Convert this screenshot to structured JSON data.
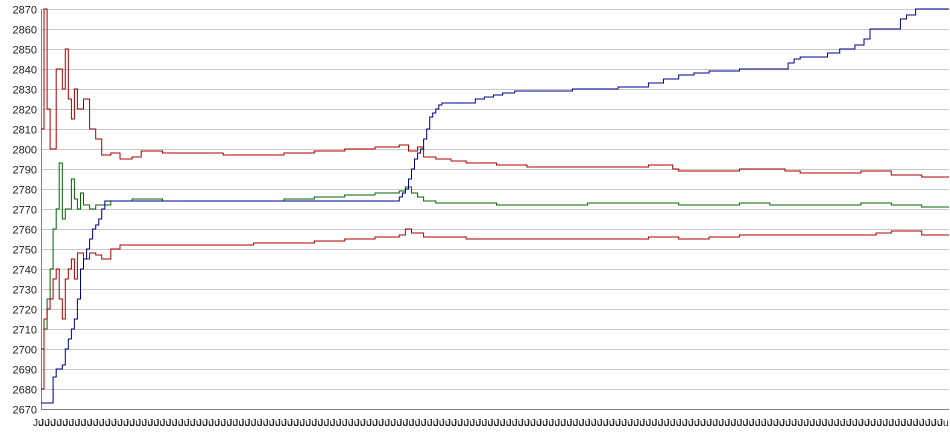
{
  "chart_data": {
    "type": "line",
    "title": "",
    "xlabel": "",
    "ylabel": "",
    "ylim": [
      2670,
      2870
    ],
    "yticks": [
      2670,
      2680,
      2690,
      2700,
      2710,
      2720,
      2730,
      2740,
      2750,
      2760,
      2770,
      2780,
      2790,
      2800,
      2810,
      2820,
      2830,
      2840,
      2850,
      2860,
      2870
    ],
    "grid": true,
    "legend": "none",
    "x_category_count": 300,
    "x_label_text": "Ju",
    "colors": {
      "grid": "#c8c8c8",
      "axis": "#808080",
      "upper": "#aa0000",
      "middle": "#006600",
      "lower": "#aa0000",
      "trend": "#000088"
    },
    "series": [
      {
        "key": "upper",
        "color": "#aa0000",
        "points": [
          [
            0,
            2810
          ],
          [
            1,
            2870
          ],
          [
            2,
            2820
          ],
          [
            3,
            2800
          ],
          [
            5,
            2840
          ],
          [
            7,
            2830
          ],
          [
            8,
            2850
          ],
          [
            9,
            2825
          ],
          [
            10,
            2815
          ],
          [
            11,
            2830
          ],
          [
            12,
            2820
          ],
          [
            14,
            2825
          ],
          [
            16,
            2810
          ],
          [
            18,
            2805
          ],
          [
            20,
            2797
          ],
          [
            23,
            2798
          ],
          [
            26,
            2795
          ],
          [
            30,
            2796
          ],
          [
            33,
            2799
          ],
          [
            40,
            2798
          ],
          [
            50,
            2798
          ],
          [
            60,
            2797
          ],
          [
            70,
            2797
          ],
          [
            80,
            2798
          ],
          [
            90,
            2799
          ],
          [
            100,
            2800
          ],
          [
            110,
            2801
          ],
          [
            118,
            2802
          ],
          [
            121,
            2799
          ],
          [
            124,
            2801
          ],
          [
            126,
            2796
          ],
          [
            130,
            2795
          ],
          [
            135,
            2794
          ],
          [
            140,
            2793
          ],
          [
            150,
            2792
          ],
          [
            160,
            2791
          ],
          [
            170,
            2791
          ],
          [
            180,
            2791
          ],
          [
            190,
            2791
          ],
          [
            200,
            2792
          ],
          [
            205,
            2792
          ],
          [
            208,
            2790
          ],
          [
            210,
            2789
          ],
          [
            220,
            2789
          ],
          [
            230,
            2790
          ],
          [
            240,
            2790
          ],
          [
            245,
            2789
          ],
          [
            250,
            2788
          ],
          [
            260,
            2788
          ],
          [
            270,
            2789
          ],
          [
            275,
            2789
          ],
          [
            280,
            2787
          ],
          [
            290,
            2786
          ],
          [
            299,
            2786
          ]
        ]
      },
      {
        "key": "middle",
        "color": "#006600",
        "points": [
          [
            0,
            2700
          ],
          [
            1,
            2710
          ],
          [
            2,
            2725
          ],
          [
            3,
            2740
          ],
          [
            4,
            2760
          ],
          [
            5,
            2770
          ],
          [
            6,
            2793
          ],
          [
            7,
            2765
          ],
          [
            8,
            2770
          ],
          [
            10,
            2785
          ],
          [
            11,
            2775
          ],
          [
            12,
            2770
          ],
          [
            13,
            2778
          ],
          [
            14,
            2772
          ],
          [
            16,
            2770
          ],
          [
            18,
            2772
          ],
          [
            20,
            2772
          ],
          [
            23,
            2774
          ],
          [
            26,
            2774
          ],
          [
            30,
            2775
          ],
          [
            40,
            2774
          ],
          [
            50,
            2774
          ],
          [
            60,
            2774
          ],
          [
            70,
            2774
          ],
          [
            80,
            2775
          ],
          [
            90,
            2776
          ],
          [
            100,
            2777
          ],
          [
            110,
            2778
          ],
          [
            118,
            2779
          ],
          [
            120,
            2781
          ],
          [
            122,
            2778
          ],
          [
            124,
            2776
          ],
          [
            126,
            2774
          ],
          [
            130,
            2773
          ],
          [
            140,
            2773
          ],
          [
            150,
            2772
          ],
          [
            160,
            2772
          ],
          [
            170,
            2772
          ],
          [
            180,
            2773
          ],
          [
            190,
            2773
          ],
          [
            200,
            2773
          ],
          [
            205,
            2773
          ],
          [
            210,
            2772
          ],
          [
            220,
            2772
          ],
          [
            230,
            2773
          ],
          [
            240,
            2772
          ],
          [
            245,
            2772
          ],
          [
            250,
            2772
          ],
          [
            260,
            2772
          ],
          [
            270,
            2773
          ],
          [
            275,
            2773
          ],
          [
            280,
            2772
          ],
          [
            290,
            2771
          ],
          [
            299,
            2771
          ]
        ]
      },
      {
        "key": "lower",
        "color": "#aa0000",
        "points": [
          [
            0,
            2680
          ],
          [
            1,
            2715
          ],
          [
            2,
            2720
          ],
          [
            3,
            2725
          ],
          [
            4,
            2735
          ],
          [
            5,
            2740
          ],
          [
            6,
            2725
          ],
          [
            7,
            2715
          ],
          [
            8,
            2735
          ],
          [
            9,
            2740
          ],
          [
            10,
            2745
          ],
          [
            11,
            2735
          ],
          [
            12,
            2748
          ],
          [
            14,
            2745
          ],
          [
            16,
            2748
          ],
          [
            18,
            2747
          ],
          [
            20,
            2745
          ],
          [
            23,
            2750
          ],
          [
            26,
            2752
          ],
          [
            30,
            2752
          ],
          [
            40,
            2752
          ],
          [
            50,
            2752
          ],
          [
            60,
            2752
          ],
          [
            70,
            2753
          ],
          [
            80,
            2753
          ],
          [
            90,
            2754
          ],
          [
            100,
            2755
          ],
          [
            110,
            2756
          ],
          [
            118,
            2757
          ],
          [
            120,
            2760
          ],
          [
            122,
            2758
          ],
          [
            124,
            2758
          ],
          [
            126,
            2756
          ],
          [
            130,
            2756
          ],
          [
            140,
            2755
          ],
          [
            150,
            2755
          ],
          [
            160,
            2755
          ],
          [
            170,
            2755
          ],
          [
            180,
            2755
          ],
          [
            190,
            2755
          ],
          [
            200,
            2756
          ],
          [
            205,
            2756
          ],
          [
            210,
            2755
          ],
          [
            220,
            2756
          ],
          [
            230,
            2757
          ],
          [
            240,
            2757
          ],
          [
            245,
            2757
          ],
          [
            250,
            2757
          ],
          [
            260,
            2757
          ],
          [
            270,
            2757
          ],
          [
            275,
            2758
          ],
          [
            280,
            2759
          ],
          [
            290,
            2757
          ],
          [
            299,
            2757
          ]
        ]
      },
      {
        "key": "trend",
        "color": "#000088",
        "points": [
          [
            0,
            2673
          ],
          [
            1,
            2673
          ],
          [
            2,
            2673
          ],
          [
            3,
            2673
          ],
          [
            4,
            2686
          ],
          [
            5,
            2690
          ],
          [
            6,
            2690
          ],
          [
            7,
            2692
          ],
          [
            8,
            2700
          ],
          [
            9,
            2705
          ],
          [
            10,
            2710
          ],
          [
            11,
            2715
          ],
          [
            12,
            2725
          ],
          [
            13,
            2740
          ],
          [
            14,
            2745
          ],
          [
            15,
            2750
          ],
          [
            16,
            2755
          ],
          [
            17,
            2760
          ],
          [
            18,
            2762
          ],
          [
            19,
            2765
          ],
          [
            20,
            2770
          ],
          [
            21,
            2774
          ],
          [
            30,
            2774
          ],
          [
            40,
            2774
          ],
          [
            50,
            2774
          ],
          [
            60,
            2774
          ],
          [
            70,
            2774
          ],
          [
            80,
            2774
          ],
          [
            90,
            2774
          ],
          [
            100,
            2774
          ],
          [
            110,
            2774
          ],
          [
            117,
            2774
          ],
          [
            118,
            2776
          ],
          [
            119,
            2778
          ],
          [
            120,
            2780
          ],
          [
            121,
            2785
          ],
          [
            122,
            2790
          ],
          [
            123,
            2795
          ],
          [
            124,
            2798
          ],
          [
            125,
            2800
          ],
          [
            126,
            2805
          ],
          [
            127,
            2810
          ],
          [
            128,
            2816
          ],
          [
            129,
            2818
          ],
          [
            130,
            2820
          ],
          [
            131,
            2822
          ],
          [
            132,
            2823
          ],
          [
            133,
            2823
          ],
          [
            140,
            2823
          ],
          [
            143,
            2825
          ],
          [
            146,
            2826
          ],
          [
            149,
            2827
          ],
          [
            152,
            2828
          ],
          [
            156,
            2829
          ],
          [
            160,
            2829
          ],
          [
            170,
            2829
          ],
          [
            175,
            2830
          ],
          [
            180,
            2830
          ],
          [
            190,
            2831
          ],
          [
            200,
            2833
          ],
          [
            205,
            2835
          ],
          [
            210,
            2837
          ],
          [
            215,
            2838
          ],
          [
            220,
            2839
          ],
          [
            230,
            2840
          ],
          [
            240,
            2840
          ],
          [
            246,
            2843
          ],
          [
            248,
            2845
          ],
          [
            250,
            2846
          ],
          [
            255,
            2846
          ],
          [
            259,
            2848
          ],
          [
            263,
            2850
          ],
          [
            268,
            2852
          ],
          [
            271,
            2855
          ],
          [
            273,
            2860
          ],
          [
            280,
            2860
          ],
          [
            283,
            2865
          ],
          [
            285,
            2867
          ],
          [
            288,
            2870
          ],
          [
            299,
            2870
          ]
        ]
      }
    ]
  }
}
